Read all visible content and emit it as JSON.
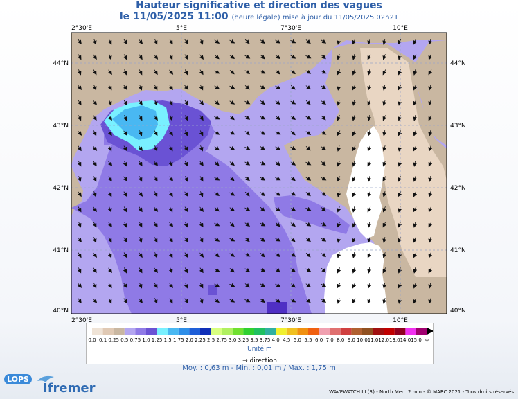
{
  "header": {
    "title": "Hauteur significative et direction des vagues",
    "date": "le 11/05/2025 11:00",
    "subtitle": "(heure légale) mise à jour du 11/05/2025 02h21"
  },
  "map": {
    "lon_labels": [
      "2°30'E",
      "5°E",
      "7°30'E",
      "10°E"
    ],
    "lat_labels": [
      "44°N",
      "43°N",
      "42°N",
      "41°N",
      "40°N"
    ],
    "colors": {
      "land": "#c9b7a1",
      "coast_low": "#e9d6c3",
      "light_purple": "#b3a6f0",
      "mid_purple": "#8f7ae6",
      "dark_purple": "#6a52d4",
      "deep_purple": "#4f2fc4",
      "cyan": "#79f0ff",
      "light_blue": "#49b8f2"
    }
  },
  "legend": {
    "labels": [
      "0,0",
      "0,1",
      "0,25",
      "0,5",
      "0,75",
      "1,0",
      "1,25",
      "1,5",
      "1,75",
      "2,0",
      "2,25",
      "2,5",
      "2,75",
      "3,0",
      "3,25",
      "3,5",
      "3,75",
      "4,0",
      "4,5",
      "5,0",
      "5,5",
      "6,0",
      "7,0",
      "8,0",
      "9,0",
      "10,0",
      "11,0",
      "12,0",
      "13,0",
      "14,0",
      "15,0",
      "∞"
    ],
    "colors": [
      "#efe3d6",
      "#e0c9b4",
      "#c9b7a1",
      "#b3a6f0",
      "#8f7ae6",
      "#6a52d4",
      "#79f0ff",
      "#49b8f2",
      "#2e8ee8",
      "#1f5fd8",
      "#0f2fb8",
      "#d8ff80",
      "#b0f060",
      "#70e030",
      "#30d030",
      "#20c060",
      "#30b0a0",
      "#f0f030",
      "#f0c020",
      "#f09010",
      "#f06010",
      "#f0a0b0",
      "#e07070",
      "#d04040",
      "#b06030",
      "#905020",
      "#a01010",
      "#c00000",
      "#900020",
      "#f030f0",
      "#a00070"
    ],
    "unit": "Unité:m",
    "direction_label": "→ direction"
  },
  "stats": "Moy. : 0,63 m  -  Min. : 0,01 m / Max. : 1,75 m",
  "credit": "WAVEWATCH III (R) - North Med. 2 min - © MARC 2021 - Tous droits réservés",
  "logos": {
    "lops": "LOPS",
    "ifremer": "Ifremer"
  }
}
